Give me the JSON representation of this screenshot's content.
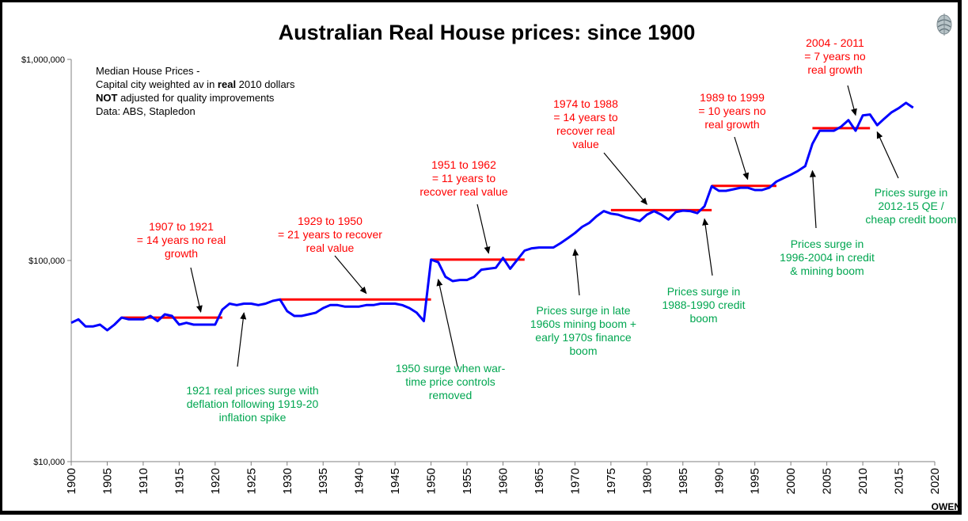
{
  "chart_data": {
    "type": "line",
    "title": "Australian Real House prices: since 1900",
    "xlabel": "",
    "ylabel": "",
    "yscale": "log",
    "ylim": [
      10000,
      1000000
    ],
    "xlim": [
      1900,
      2020
    ],
    "y_ticks": [
      {
        "value": 1000000,
        "label": "$1,000,000"
      },
      {
        "value": 100000,
        "label": "$100,000"
      },
      {
        "value": 10000,
        "label": "$10,000"
      }
    ],
    "x_ticks": [
      "1900",
      "1905",
      "1910",
      "1915",
      "1920",
      "1925",
      "1930",
      "1935",
      "1940",
      "1945",
      "1950",
      "1955",
      "1960",
      "1965",
      "1970",
      "1975",
      "1980",
      "1985",
      "1990",
      "1995",
      "2000",
      "2005",
      "2010",
      "2015",
      "2020"
    ],
    "grid": false,
    "series": [
      {
        "name": "Median House Prices (real 2010 dollars)",
        "color": "#0000ff",
        "x": [
          1900,
          1901,
          1902,
          1903,
          1904,
          1905,
          1906,
          1907,
          1908,
          1909,
          1910,
          1911,
          1912,
          1913,
          1914,
          1915,
          1916,
          1917,
          1918,
          1919,
          1920,
          1921,
          1922,
          1923,
          1924,
          1925,
          1926,
          1927,
          1928,
          1929,
          1930,
          1931,
          1932,
          1933,
          1934,
          1935,
          1936,
          1937,
          1938,
          1939,
          1940,
          1941,
          1942,
          1943,
          1944,
          1945,
          1946,
          1947,
          1948,
          1949,
          1950,
          1951,
          1952,
          1953,
          1954,
          1955,
          1956,
          1957,
          1958,
          1959,
          1960,
          1961,
          1962,
          1963,
          1964,
          1965,
          1966,
          1967,
          1968,
          1969,
          1970,
          1971,
          1972,
          1973,
          1974,
          1975,
          1976,
          1977,
          1978,
          1979,
          1980,
          1981,
          1982,
          1983,
          1984,
          1985,
          1986,
          1987,
          1988,
          1989,
          1990,
          1991,
          1992,
          1993,
          1994,
          1995,
          1996,
          1997,
          1998,
          1999,
          2000,
          2001,
          2002,
          2003,
          2004,
          2005,
          2006,
          2007,
          2008,
          2009,
          2010,
          2011,
          2012,
          2013,
          2014,
          2015,
          2016,
          2017
        ],
        "values": [
          49000,
          51000,
          47000,
          47000,
          48000,
          45000,
          48000,
          52000,
          51000,
          51000,
          51000,
          53000,
          50000,
          54000,
          53000,
          48000,
          49000,
          48000,
          48000,
          48000,
          48000,
          57000,
          61000,
          60000,
          61000,
          61000,
          60000,
          61000,
          63000,
          64000,
          56000,
          53000,
          53000,
          54000,
          55000,
          58000,
          60000,
          60000,
          59000,
          59000,
          59000,
          60000,
          60000,
          61000,
          61000,
          61000,
          60000,
          58000,
          55000,
          50000,
          101000,
          98000,
          83000,
          79000,
          80000,
          80000,
          83000,
          90000,
          91000,
          92000,
          103000,
          91000,
          101000,
          112000,
          115000,
          116000,
          116000,
          116000,
          122000,
          129000,
          137000,
          147000,
          154000,
          166000,
          176000,
          171000,
          169000,
          164000,
          161000,
          157000,
          169000,
          176000,
          169000,
          160000,
          174000,
          177000,
          176000,
          172000,
          186000,
          234000,
          222000,
          222000,
          226000,
          230000,
          230000,
          224000,
          224000,
          230000,
          247000,
          257000,
          267000,
          279000,
          295000,
          380000,
          442000,
          442000,
          442000,
          463000,
          499000,
          442000,
          527000,
          532000,
          471000,
          508000,
          546000,
          572000,
          608000,
          575000
        ]
      }
    ],
    "reference_lines": [
      {
        "x": [
          1907,
          1921
        ],
        "value": 52000,
        "color": "#ff0000"
      },
      {
        "x": [
          1929,
          1950
        ],
        "value": 64000,
        "color": "#ff0000"
      },
      {
        "x": [
          1950,
          1963
        ],
        "value": 101000,
        "color": "#ff0000"
      },
      {
        "x": [
          1975,
          1989
        ],
        "value": 178000,
        "color": "#ff0000"
      },
      {
        "x": [
          1989,
          1998
        ],
        "value": 235000,
        "color": "#ff0000"
      },
      {
        "x": [
          2003,
          2011
        ],
        "value": 455000,
        "color": "#ff0000"
      }
    ],
    "note_lines": [
      {
        "text": "Median House Prices -",
        "bold": ""
      },
      {
        "text": "Capital city weighted av in ",
        "bold": "real",
        "after": " 2010 dollars"
      },
      {
        "bold": "NOT",
        "after": " adjusted  for quality improvements"
      },
      {
        "text": "Data: ABS, Stapledon"
      }
    ],
    "annotations": [
      {
        "id": "a1907",
        "color": "red",
        "lines": [
          "1907 to 1921",
          "= 14 years  no real",
          "growth"
        ],
        "arrow_to": [
          1918,
          52500
        ]
      },
      {
        "id": "a1929",
        "color": "red",
        "lines": [
          "1929 to 1950",
          "= 21 years to recover",
          "real value"
        ],
        "arrow_to": [
          1941,
          65000
        ]
      },
      {
        "id": "a1951",
        "color": "red",
        "lines": [
          "1951 to 1962",
          "= 11 years to",
          "recover real value"
        ],
        "arrow_to": [
          1958,
          103000
        ]
      },
      {
        "id": "a1974",
        "color": "red",
        "lines": [
          "1974 to 1988",
          "= 14 years to",
          "recover real",
          "value"
        ],
        "arrow_to": [
          1980,
          180000
        ]
      },
      {
        "id": "a1989",
        "color": "red",
        "lines": [
          "1989 to 1999",
          "= 10 years no",
          "real growth"
        ],
        "arrow_to": [
          1994,
          240000
        ]
      },
      {
        "id": "a2004",
        "color": "red",
        "lines": [
          "2004 - 2011",
          "= 7 years no",
          "real growth"
        ],
        "arrow_to": [
          2009,
          500000
        ]
      },
      {
        "id": "g1921",
        "color": "green",
        "lines": [
          "1921 real prices surge with",
          "deflation following 1919-20",
          "inflation spike"
        ],
        "arrow_to": [
          1924,
          58000
        ]
      },
      {
        "id": "g1950",
        "color": "green",
        "lines": [
          "1950 surge when war-",
          "time price controls",
          "removed"
        ],
        "arrow_to": [
          1951,
          85000
        ]
      },
      {
        "id": "g1960s",
        "color": "green",
        "lines": [
          "Prices surge in late",
          "1960s mining boom +",
          "early 1970s  finance",
          "boom"
        ],
        "arrow_to": [
          1970,
          120000
        ]
      },
      {
        "id": "g1988",
        "color": "green",
        "lines": [
          "Prices surge in",
          "1988-1990 credit",
          "boom"
        ],
        "arrow_to": [
          1988,
          170000
        ]
      },
      {
        "id": "g1996",
        "color": "green",
        "lines": [
          "Prices surge in",
          "1996-2004 in credit",
          "& mining boom"
        ],
        "arrow_to": [
          2003,
          295000
        ]
      },
      {
        "id": "g2012",
        "color": "green",
        "lines": [
          "Prices surge in",
          "2012-15 QE /",
          "cheap credit boom"
        ],
        "arrow_to": [
          2012,
          460000
        ]
      }
    ],
    "source_label": "OWEN"
  },
  "logo": {
    "icon": "globe-logo-icon"
  }
}
